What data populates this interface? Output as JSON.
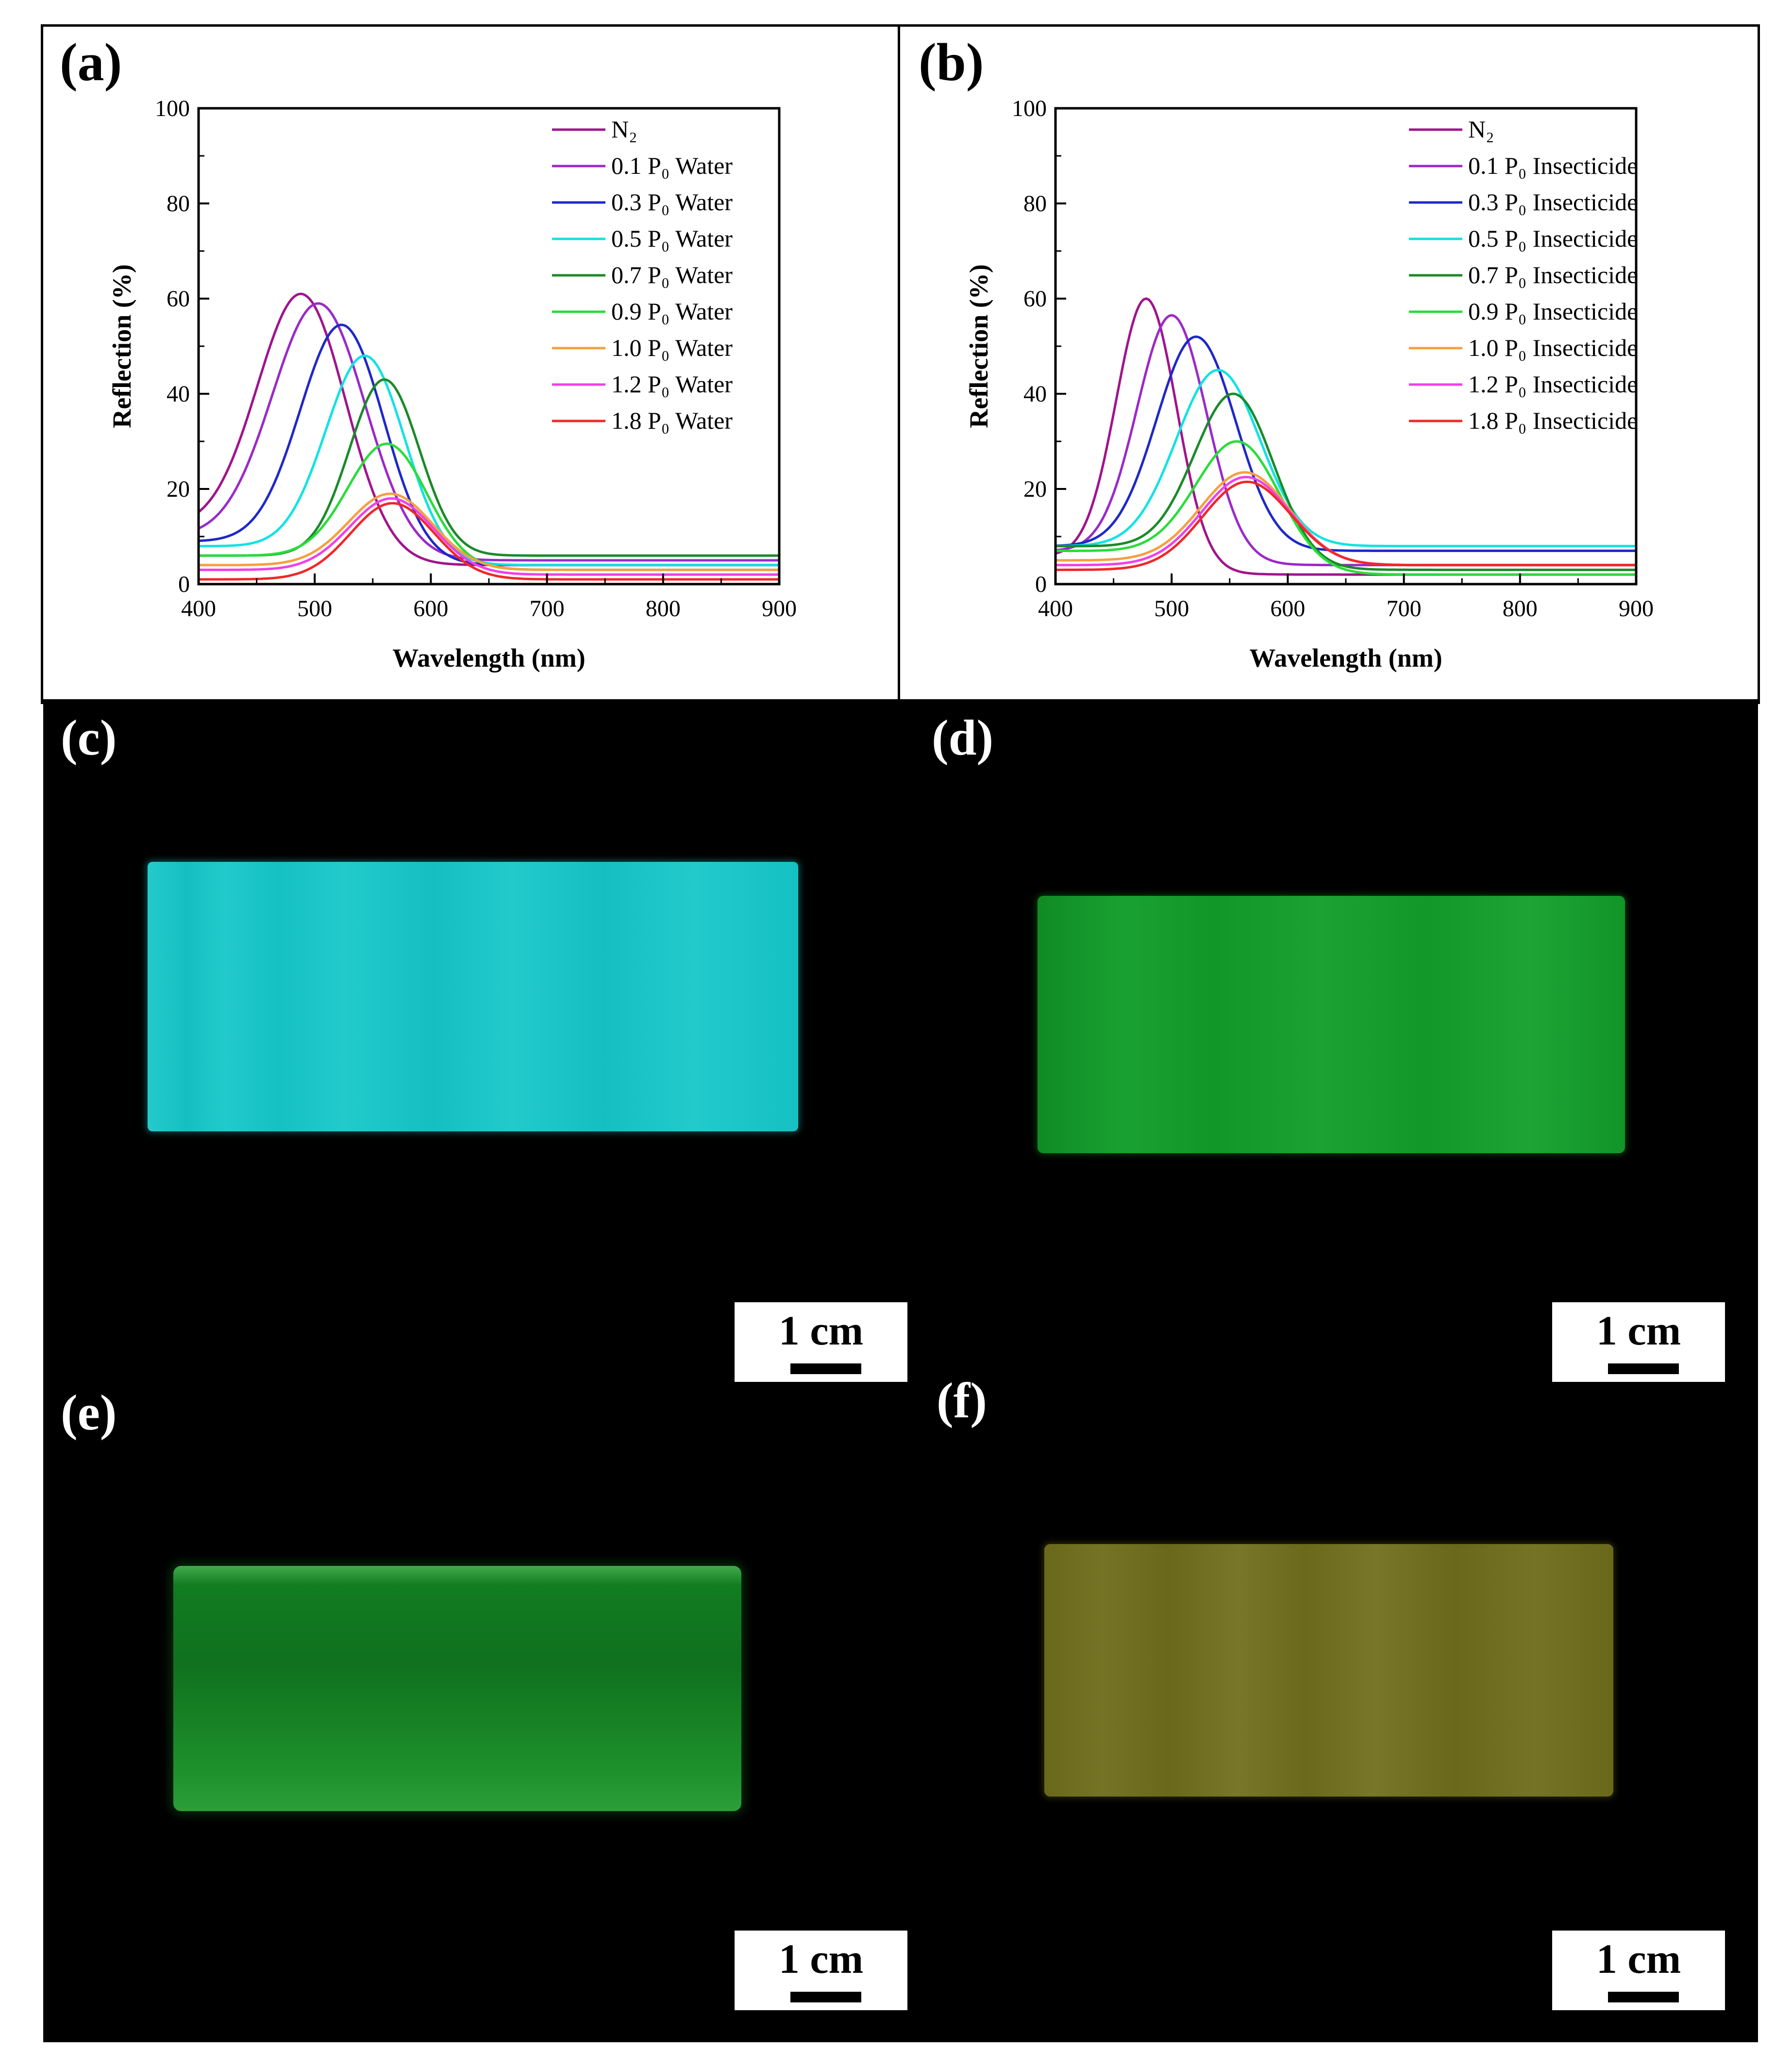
{
  "panels": {
    "a": "(a)",
    "b": "(b)",
    "c": "(c)",
    "d": "(d)",
    "e": "(e)",
    "f": "(f)"
  },
  "scale_bar_label": "1 cm",
  "photo_colors": {
    "c": "#16c7c9",
    "d": "#129e2a",
    "e": "#138a24",
    "f": "#6f6e1c"
  },
  "chart_data": [
    {
      "type": "line",
      "panel": "a",
      "xlabel": "Wavelength (nm)",
      "ylabel": "Reflection (%)",
      "xlim": [
        400,
        900
      ],
      "ylim": [
        0,
        100
      ],
      "xticks": [
        400,
        500,
        600,
        700,
        800,
        900
      ],
      "yticks": [
        0,
        20,
        40,
        60,
        80,
        100
      ],
      "legend_position": "top-right",
      "series": [
        {
          "name": "N₂",
          "color": "#a0148c",
          "peak_x": 488,
          "peak_y": 61,
          "width": 38,
          "base_left": 12,
          "base_right": 4
        },
        {
          "name": "0.1 P₀ Water",
          "color": "#9a2ac8",
          "peak_x": 503,
          "peak_y": 59,
          "width": 40,
          "base_left": 10,
          "base_right": 5
        },
        {
          "name": "0.3 P₀ Water",
          "color": "#1e28c8",
          "peak_x": 523,
          "peak_y": 54.5,
          "width": 36,
          "base_left": 9,
          "base_right": 4
        },
        {
          "name": "0.5 P₀ Water",
          "color": "#12e2e2",
          "peak_x": 543,
          "peak_y": 48,
          "width": 34,
          "base_left": 8,
          "base_right": 4
        },
        {
          "name": "0.7 P₀ Water",
          "color": "#1a8a2a",
          "peak_x": 560,
          "peak_y": 43,
          "width": 30,
          "base_left": 6,
          "base_right": 6
        },
        {
          "name": "0.9 P₀ Water",
          "color": "#2adc3a",
          "peak_x": 562,
          "peak_y": 29.5,
          "width": 34,
          "base_left": 6,
          "base_right": 3
        },
        {
          "name": "1.0 P₀ Water",
          "color": "#f4a040",
          "peak_x": 565,
          "peak_y": 19,
          "width": 36,
          "base_left": 4,
          "base_right": 3
        },
        {
          "name": "1.2 P₀ Water",
          "color": "#f040e8",
          "peak_x": 566,
          "peak_y": 18,
          "width": 36,
          "base_left": 3,
          "base_right": 2
        },
        {
          "name": "1.8 P₀ Water",
          "color": "#f02828",
          "peak_x": 567,
          "peak_y": 17,
          "width": 36,
          "base_left": 1,
          "base_right": 1
        }
      ]
    },
    {
      "type": "line",
      "panel": "b",
      "xlabel": "Wavelength (nm)",
      "ylabel": "Reflection (%)",
      "xlim": [
        400,
        900
      ],
      "ylim": [
        0,
        100
      ],
      "xticks": [
        400,
        500,
        600,
        700,
        800,
        900
      ],
      "yticks": [
        0,
        20,
        40,
        60,
        80,
        100
      ],
      "legend_position": "top-right",
      "series": [
        {
          "name": "N₂",
          "color": "#a0148c",
          "peak_x": 478,
          "peak_y": 60,
          "width": 26,
          "base_left": 6,
          "base_right": 2
        },
        {
          "name": "0.1 P₀ Insecticide",
          "color": "#9a2ac8",
          "peak_x": 500,
          "peak_y": 56.5,
          "width": 30,
          "base_left": 7,
          "base_right": 4
        },
        {
          "name": "0.3 P₀ Insecticide",
          "color": "#1e28c8",
          "peak_x": 521,
          "peak_y": 52,
          "width": 34,
          "base_left": 8,
          "base_right": 7
        },
        {
          "name": "0.5 P₀ Insecticide",
          "color": "#12e2e2",
          "peak_x": 540,
          "peak_y": 45,
          "width": 36,
          "base_left": 8,
          "base_right": 8
        },
        {
          "name": "0.7 P₀ Insecticide",
          "color": "#1a8a2a",
          "peak_x": 553,
          "peak_y": 40,
          "width": 34,
          "base_left": 8,
          "base_right": 3
        },
        {
          "name": "0.9 P₀ Insecticide",
          "color": "#2adc3a",
          "peak_x": 556,
          "peak_y": 30,
          "width": 36,
          "base_left": 7,
          "base_right": 2
        },
        {
          "name": "1.0 P₀ Insecticide",
          "color": "#f4a040",
          "peak_x": 563,
          "peak_y": 23.5,
          "width": 38,
          "base_left": 5,
          "base_right": 4
        },
        {
          "name": "1.2 P₀ Insecticide",
          "color": "#f040e8",
          "peak_x": 564,
          "peak_y": 22.5,
          "width": 38,
          "base_left": 4,
          "base_right": 4
        },
        {
          "name": "1.8 P₀ Insecticide",
          "color": "#f02828",
          "peak_x": 565,
          "peak_y": 21.5,
          "width": 38,
          "base_left": 3,
          "base_right": 4
        }
      ]
    }
  ]
}
